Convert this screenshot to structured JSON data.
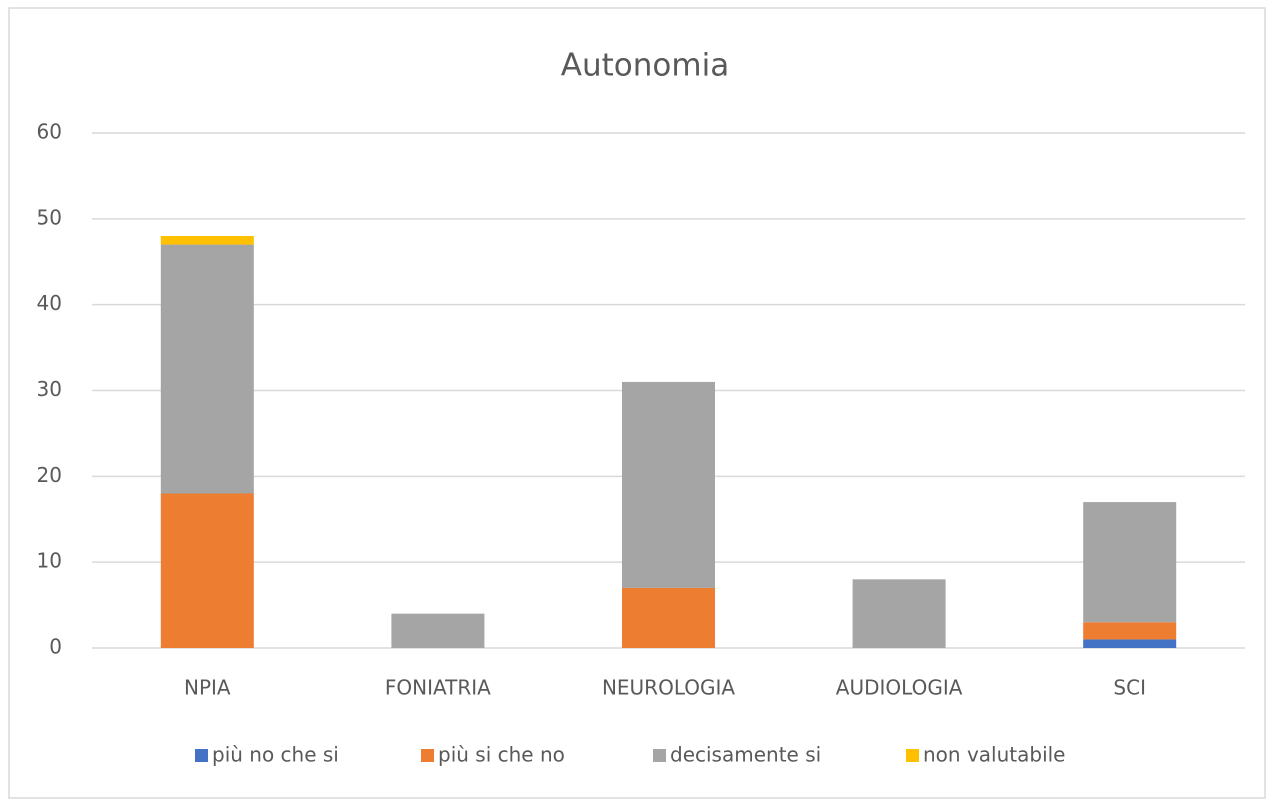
{
  "chart_data": {
    "type": "stacked_bar",
    "title": "Autonomia",
    "categories": [
      "NPIA",
      "FONIATRIA",
      "NEUROLOGIA",
      "AUDIOLOGIA",
      "SCI"
    ],
    "series": [
      {
        "name": "più no che si",
        "color": "#4472c4",
        "values": [
          0,
          0,
          0,
          0,
          1
        ]
      },
      {
        "name": "più si che no",
        "color": "#ed7d31",
        "values": [
          18,
          0,
          7,
          0,
          2
        ]
      },
      {
        "name": "decisamente si",
        "color": "#a5a5a5",
        "values": [
          29,
          4,
          24,
          8,
          14
        ]
      },
      {
        "name": "non valutabile",
        "color": "#ffc000",
        "values": [
          1,
          0,
          0,
          0,
          0
        ]
      }
    ],
    "ylim": [
      0,
      60
    ],
    "yticks": [
      0,
      10,
      20,
      30,
      40,
      50,
      60
    ],
    "grid": true,
    "legend": "bottom"
  }
}
